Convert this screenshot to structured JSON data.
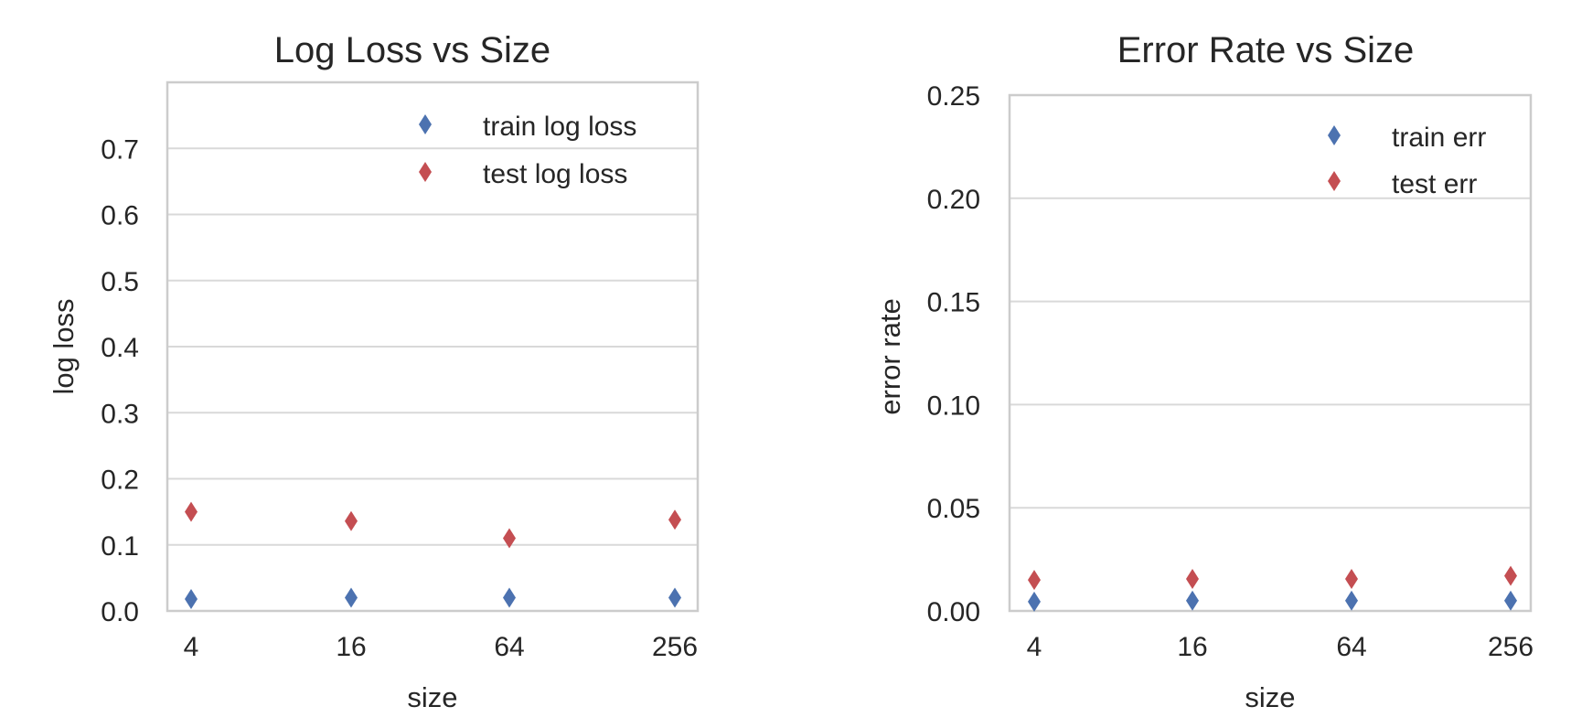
{
  "colors": {
    "train": "#4c72b0",
    "test": "#c44e52",
    "grid": "#d9d9d9",
    "frame": "#cccccc",
    "text": "#262626"
  },
  "chart_data": [
    {
      "type": "scatter",
      "title": "Log Loss vs Size",
      "xlabel": "size",
      "ylabel": "log loss",
      "categories": [
        "4",
        "16",
        "64",
        "256"
      ],
      "ylim": [
        0,
        0.8
      ],
      "yticks": [
        0.0,
        0.1,
        0.2,
        0.3,
        0.4,
        0.5,
        0.6,
        0.7
      ],
      "ytick_labels": [
        "0.0",
        "0.1",
        "0.2",
        "0.3",
        "0.4",
        "0.5",
        "0.6",
        "0.7"
      ],
      "grid": true,
      "legend_position": "top-right",
      "marker": "diamond",
      "series": [
        {
          "name": "train log loss",
          "color_key": "train",
          "values": [
            0.018,
            0.02,
            0.02,
            0.02
          ]
        },
        {
          "name": "test log loss",
          "color_key": "test",
          "values": [
            0.15,
            0.136,
            0.11,
            0.138
          ]
        }
      ]
    },
    {
      "type": "scatter",
      "title": "Error Rate vs Size",
      "xlabel": "size",
      "ylabel": "error rate",
      "categories": [
        "4",
        "16",
        "64",
        "256"
      ],
      "ylim": [
        0,
        0.25
      ],
      "yticks": [
        0.0,
        0.05,
        0.1,
        0.15,
        0.2,
        0.25
      ],
      "ytick_labels": [
        "0.00",
        "0.05",
        "0.10",
        "0.15",
        "0.20",
        "0.25"
      ],
      "grid": true,
      "legend_position": "top-right",
      "marker": "diamond",
      "series": [
        {
          "name": "train err",
          "color_key": "train",
          "values": [
            0.0045,
            0.005,
            0.005,
            0.005
          ]
        },
        {
          "name": "test err",
          "color_key": "test",
          "values": [
            0.015,
            0.0155,
            0.0155,
            0.017
          ]
        }
      ]
    }
  ]
}
